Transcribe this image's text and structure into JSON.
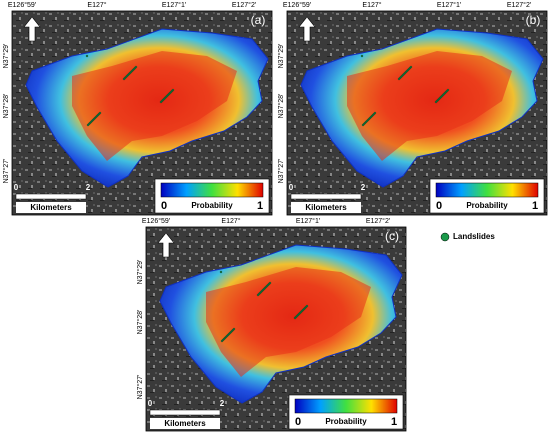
{
  "panels": [
    {
      "label": "(a)",
      "lon_labels": [
        "E126°59′",
        "E127°",
        "E127°1′",
        "E127°2′"
      ],
      "lat_labels": [
        "N37°29′",
        "N37°28′",
        "N37°27′"
      ],
      "scale": {
        "start": "0",
        "end": "2",
        "unit": "Kilometers"
      },
      "legend": {
        "min": "0",
        "title": "Probability",
        "max": "1"
      }
    },
    {
      "label": "(b)",
      "lon_labels": [
        "E126°59′",
        "E127°",
        "E127°1′",
        "E127°2′"
      ],
      "lat_labels": [
        "N37°29′",
        "N37°28′",
        "N37°27′"
      ],
      "scale": {
        "start": "0",
        "end": "2",
        "unit": "Kilometers"
      },
      "legend": {
        "min": "0",
        "title": "Probability",
        "max": "1"
      }
    },
    {
      "label": "(c)",
      "lon_labels": [
        "E126°59′",
        "E127°",
        "E127°1′",
        "E127°2′"
      ],
      "lat_labels": [
        "N37°29′",
        "N37°28′",
        "N37°27′"
      ],
      "scale": {
        "start": "0",
        "end": "2",
        "unit": "Kilometers"
      },
      "legend": {
        "min": "0",
        "title": "Probability",
        "max": "1"
      }
    }
  ],
  "landslides_legend": "Landslides"
}
